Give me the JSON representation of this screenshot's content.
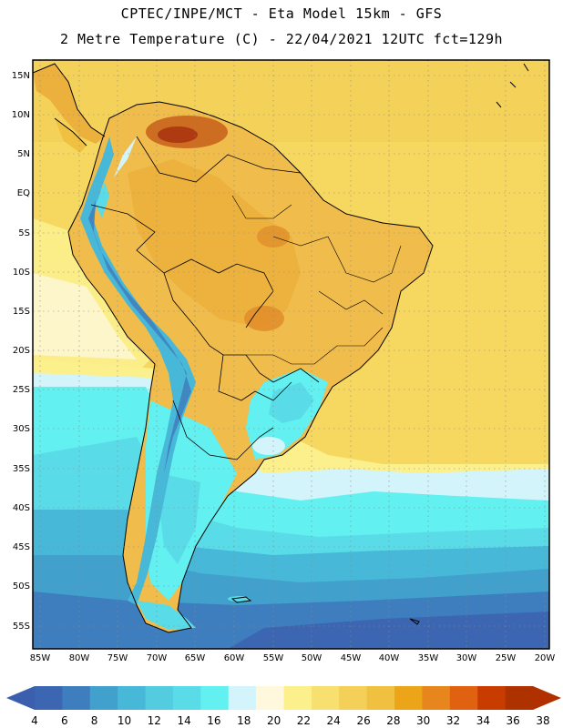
{
  "header": {
    "line1": "CPTEC/INPE/MCT -  Eta Model 15km - GFS",
    "line2": "2 Metre Temperature (C) - 22/04/2021 12UTC fct=129h"
  },
  "map": {
    "lat_labels": [
      "15N",
      "10N",
      "5N",
      "EQ",
      "5S",
      "10S",
      "15S",
      "20S",
      "25S",
      "30S",
      "35S",
      "40S",
      "45S",
      "50S",
      "55S"
    ],
    "lon_labels": [
      "85W",
      "80W",
      "75W",
      "70W",
      "65W",
      "60W",
      "55W",
      "50W",
      "45W",
      "40W",
      "35W",
      "30W",
      "25W",
      "20W"
    ],
    "grid_style": "dotted"
  },
  "colorbar": {
    "labels": [
      "4",
      "6",
      "8",
      "10",
      "12",
      "14",
      "16",
      "18",
      "20",
      "22",
      "24",
      "26",
      "28",
      "30",
      "32",
      "34",
      "36",
      "38"
    ],
    "colors": [
      "#3c66b2",
      "#3f7ebe",
      "#41a0cc",
      "#48b8d8",
      "#54cce0",
      "#5adce8",
      "#62f0f0",
      "#d2f4fa",
      "#fff8dc",
      "#fcf08c",
      "#f8e070",
      "#f4d058",
      "#f0c040",
      "#eca418",
      "#e8861e",
      "#e06210",
      "#c83c00",
      "#ad3200"
    ],
    "end_colors": {
      "low": "#3b5fae",
      "high": "#b23000"
    }
  }
}
